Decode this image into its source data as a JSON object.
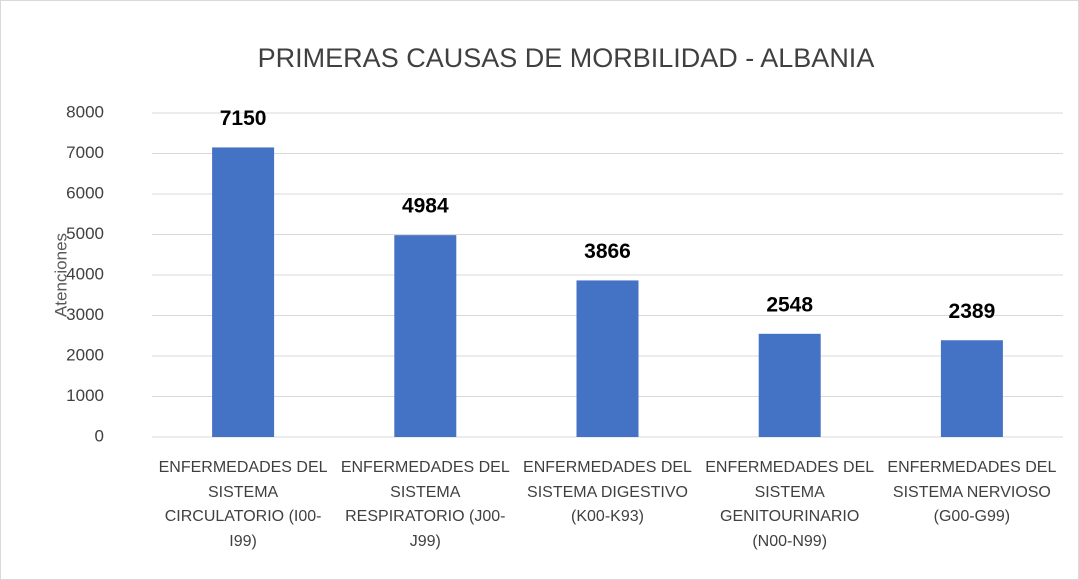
{
  "chart_data": {
    "type": "bar",
    "title": "PRIMERAS CAUSAS DE MORBILIDAD - ALBANIA",
    "y_label": "Atenciones",
    "categories": [
      "ENFERMEDADES DEL SISTEMA CIRCULATORIO (I00-I99)",
      "ENFERMEDADES DEL SISTEMA RESPIRATORIO (J00-J99)",
      "ENFERMEDADES DEL SISTEMA DIGESTIVO (K00-K93)",
      "ENFERMEDADES DEL SISTEMA GENITOURINARIO (N00-N99)",
      "ENFERMEDADES DEL SISTEMA NERVIOSO (G00-G99)"
    ],
    "values": [
      7150,
      4984,
      3866,
      2548,
      2389
    ],
    "color": "#4472c4",
    "ylim": [
      0,
      8000
    ],
    "yticks": [
      0,
      1000,
      2000,
      3000,
      4000,
      5000,
      6000,
      7000,
      8000
    ],
    "grid": true
  }
}
